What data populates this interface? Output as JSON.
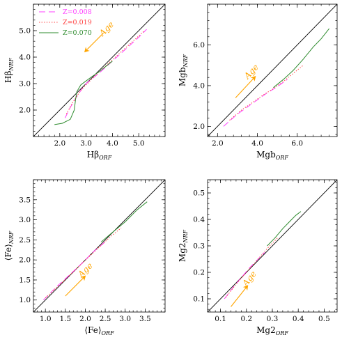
{
  "legend": [
    {
      "name": "Z=0.008",
      "color": "#ff40ff",
      "dash": "9,5"
    },
    {
      "name": "Z=0.019",
      "color": "#ff4040",
      "dash": "1.4,2.2"
    },
    {
      "name": "Z=0.070",
      "color": "#2e8b2e",
      "dash": ""
    }
  ],
  "age_label": "Age",
  "age_color": "#ffa500",
  "line_color": "#000000",
  "chart_data": [
    {
      "type": "line",
      "panel": "top-left",
      "xlabel_main": "Hβ",
      "xlabel_sub": "ORF",
      "ylabel_main": "Hβ",
      "ylabel_sub": "NRF",
      "xlim": [
        1.0,
        6.0
      ],
      "ylim": [
        1.0,
        6.0
      ],
      "xticks": [
        "2.0",
        "3.0",
        "4.0",
        "5.0"
      ],
      "xtick_values": [
        2.0,
        3.0,
        4.0,
        5.0
      ],
      "yticks": [
        "2.0",
        "3.0",
        "4.0",
        "5.0"
      ],
      "ytick_values": [
        2.0,
        3.0,
        4.0,
        5.0
      ],
      "age_arrow": {
        "from": [
          3.65,
          4.9
        ],
        "to": [
          2.95,
          4.2
        ],
        "label_at": [
          3.85,
          5.0
        ]
      },
      "series": [
        {
          "name": "Z=0.008",
          "x": [
            2.2,
            2.4,
            2.7,
            3.0,
            3.5,
            4.0,
            4.5,
            5.0,
            5.3
          ],
          "y": [
            1.7,
            2.1,
            2.6,
            3.0,
            3.4,
            3.85,
            4.3,
            4.75,
            5.05
          ]
        },
        {
          "name": "Z=0.019",
          "x": [
            2.25,
            2.5,
            2.8,
            3.1,
            3.5,
            4.0,
            4.5,
            5.0,
            5.2
          ],
          "y": [
            1.85,
            2.3,
            2.75,
            3.05,
            3.45,
            3.9,
            4.35,
            4.8,
            4.98
          ]
        },
        {
          "name": "Z=0.070",
          "x": [
            1.8,
            2.1,
            2.4,
            2.55,
            2.6,
            2.65,
            2.8,
            3.0,
            3.2,
            3.5,
            4.0
          ],
          "y": [
            1.45,
            1.5,
            1.65,
            2.0,
            2.4,
            2.7,
            2.95,
            3.1,
            3.25,
            3.45,
            3.85
          ]
        }
      ]
    },
    {
      "type": "line",
      "panel": "top-right",
      "xlabel_main": "Mgb",
      "xlabel_sub": "ORF",
      "ylabel_main": "Mgb",
      "ylabel_sub": "NRF",
      "xlim": [
        1.5,
        8.0
      ],
      "ylim": [
        1.5,
        8.0
      ],
      "xticks": [
        "2.0",
        "4.0",
        "6.0"
      ],
      "xtick_values": [
        2.0,
        4.0,
        6.0
      ],
      "yticks": [
        "2.0",
        "4.0",
        "6.0"
      ],
      "ytick_values": [
        2.0,
        4.0,
        6.0
      ],
      "age_arrow": {
        "from": [
          2.9,
          3.4
        ],
        "to": [
          3.9,
          4.45
        ],
        "label_at": [
          3.8,
          4.6
        ]
      },
      "series": [
        {
          "name": "Z=0.008",
          "x": [
            2.3,
            3.0,
            3.5,
            4.0,
            4.5,
            5.0,
            5.5
          ],
          "y": [
            2.0,
            2.6,
            2.95,
            3.3,
            3.65,
            3.95,
            4.3
          ]
        },
        {
          "name": "Z=0.019",
          "x": [
            2.6,
            3.2,
            3.8,
            4.3,
            4.8,
            5.3,
            5.8,
            6.3
          ],
          "y": [
            2.3,
            2.8,
            3.2,
            3.55,
            3.85,
            4.2,
            4.6,
            5.0
          ]
        },
        {
          "name": "Z=0.070",
          "x": [
            4.8,
            5.3,
            5.8,
            6.3,
            6.8,
            7.2,
            7.6
          ],
          "y": [
            3.9,
            4.3,
            4.75,
            5.3,
            5.9,
            6.3,
            6.8
          ]
        }
      ]
    },
    {
      "type": "line",
      "panel": "bottom-left",
      "xlabel_main": "⟨Fe⟩",
      "xlabel_sub": "ORF",
      "ylabel_main": "⟨Fe⟩",
      "ylabel_sub": "NRF",
      "xlim": [
        0.7,
        4.0
      ],
      "ylim": [
        0.7,
        4.0
      ],
      "xticks": [
        "1.0",
        "1.5",
        "2.0",
        "2.5",
        "3.0",
        "3.5"
      ],
      "xtick_values": [
        1.0,
        1.5,
        2.0,
        2.5,
        3.0,
        3.5
      ],
      "yticks": [
        "1.0",
        "1.5",
        "2.0",
        "2.5",
        "3.0",
        "3.5"
      ],
      "ytick_values": [
        1.0,
        1.5,
        2.0,
        2.5,
        3.0,
        3.5
      ],
      "age_arrow": {
        "from": [
          1.5,
          1.1
        ],
        "to": [
          2.0,
          1.6
        ],
        "label_at": [
          2.05,
          1.7
        ]
      },
      "series": [
        {
          "name": "Z=0.008",
          "x": [
            0.95,
            1.3,
            1.6,
            1.9,
            2.2,
            2.5
          ],
          "y": [
            1.0,
            1.35,
            1.62,
            1.9,
            2.2,
            2.45
          ]
        },
        {
          "name": "Z=0.019",
          "x": [
            1.0,
            1.4,
            1.8,
            2.2,
            2.6,
            2.9
          ],
          "y": [
            1.05,
            1.42,
            1.8,
            2.18,
            2.55,
            2.8
          ]
        },
        {
          "name": "Z=0.070",
          "x": [
            2.4,
            2.7,
            3.0,
            3.3,
            3.55
          ],
          "y": [
            2.45,
            2.7,
            2.95,
            3.25,
            3.45
          ]
        }
      ]
    },
    {
      "type": "line",
      "panel": "bottom-right",
      "xlabel_main": "Mg2",
      "xlabel_sub": "ORF",
      "ylabel_main": "Mg2",
      "ylabel_sub": "NRF",
      "xlim": [
        0.05,
        0.55
      ],
      "ylim": [
        0.05,
        0.55
      ],
      "xticks": [
        "0.1",
        "0.2",
        "0.3",
        "0.4",
        "0.5"
      ],
      "xtick_values": [
        0.1,
        0.2,
        0.3,
        0.4,
        0.5
      ],
      "yticks": [
        "0.1",
        "0.2",
        "0.3",
        "0.4",
        "0.5"
      ],
      "ytick_values": [
        0.1,
        0.2,
        0.3,
        0.4,
        0.5
      ],
      "age_arrow": {
        "from": [
          0.14,
          0.07
        ],
        "to": [
          0.205,
          0.15
        ],
        "label_at": [
          0.22,
          0.17
        ]
      },
      "series": [
        {
          "name": "Z=0.008",
          "x": [
            0.115,
            0.15,
            0.18,
            0.21,
            0.24,
            0.27
          ],
          "y": [
            0.1,
            0.145,
            0.18,
            0.215,
            0.245,
            0.275
          ]
        },
        {
          "name": "Z=0.019",
          "x": [
            0.12,
            0.16,
            0.2,
            0.24,
            0.28,
            0.32
          ],
          "y": [
            0.105,
            0.155,
            0.2,
            0.245,
            0.29,
            0.33
          ]
        },
        {
          "name": "Z=0.070",
          "x": [
            0.28,
            0.31,
            0.34,
            0.37,
            0.39,
            0.41
          ],
          "y": [
            0.3,
            0.33,
            0.365,
            0.395,
            0.415,
            0.43
          ]
        }
      ]
    }
  ]
}
